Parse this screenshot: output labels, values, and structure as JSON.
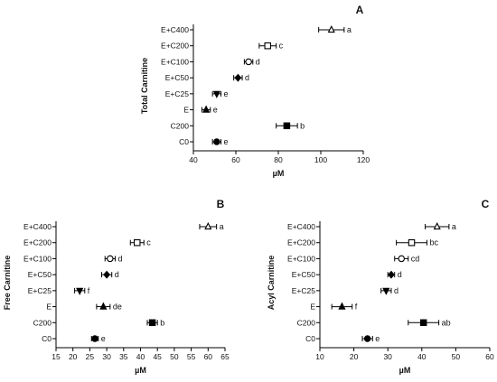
{
  "chart_data": [
    {
      "type": "scatter",
      "panel": "A",
      "xlabel": "µM",
      "ylabel": "Total Carnitine",
      "xlim": [
        40,
        120
      ],
      "xticks": [
        "40",
        "60",
        "80",
        "100",
        "120"
      ],
      "categories": [
        "E+C400",
        "E+C200",
        "E+C100",
        "E+C50",
        "E+C25",
        "E",
        "C200",
        "C0"
      ],
      "markers": [
        "triangle-open",
        "square-open",
        "circle-open",
        "diamond",
        "triangle-down",
        "triangle",
        "square",
        "circle"
      ],
      "values": [
        105,
        75,
        66,
        61,
        51,
        46,
        84,
        51
      ],
      "err": [
        6,
        4,
        2,
        2,
        2,
        2,
        5,
        2
      ],
      "labels": [
        "a",
        "c",
        "d",
        "d",
        "e",
        "e",
        "b",
        "e"
      ]
    },
    {
      "type": "scatter",
      "panel": "B",
      "xlabel": "µM",
      "ylabel": "Free Carnitine",
      "xlim": [
        15,
        65
      ],
      "xticks": [
        "15",
        "20",
        "25",
        "30",
        "35",
        "40",
        "45",
        "50",
        "55",
        "60",
        "65"
      ],
      "categories": [
        "E+C400",
        "E+C200",
        "E+C100",
        "E+C50",
        "E+C25",
        "E",
        "C200",
        "C0"
      ],
      "markers": [
        "triangle-open",
        "square-open",
        "circle-open",
        "diamond",
        "triangle-down",
        "triangle",
        "square",
        "circle"
      ],
      "values": [
        60,
        39,
        31,
        30,
        22,
        29,
        43.5,
        26.5
      ],
      "err": [
        2.5,
        2,
        1.5,
        1.5,
        1.5,
        2,
        1.5,
        1
      ],
      "labels": [
        "a",
        "c",
        "d",
        "d",
        "f",
        "de",
        "b",
        "e"
      ]
    },
    {
      "type": "scatter",
      "panel": "C",
      "xlabel": "µM",
      "ylabel": "Acyl Carnitine",
      "xlim": [
        10,
        60
      ],
      "xticks": [
        "10",
        "20",
        "30",
        "40",
        "50",
        "60"
      ],
      "categories": [
        "E+C400",
        "E+C200",
        "E+C100",
        "E+C50",
        "E+C25",
        "E",
        "C200",
        "C0"
      ],
      "markers": [
        "triangle-open",
        "square-open",
        "circle-open",
        "diamond",
        "triangle-down",
        "triangle",
        "square",
        "circle"
      ],
      "values": [
        44.5,
        37,
        34,
        31,
        29.5,
        16.5,
        40.5,
        24
      ],
      "err": [
        3.5,
        4.5,
        2,
        1,
        1.5,
        3,
        4.5,
        1.5
      ],
      "labels": [
        "a",
        "bc",
        "cd",
        "d",
        "d",
        "f",
        "ab",
        "e"
      ]
    }
  ]
}
